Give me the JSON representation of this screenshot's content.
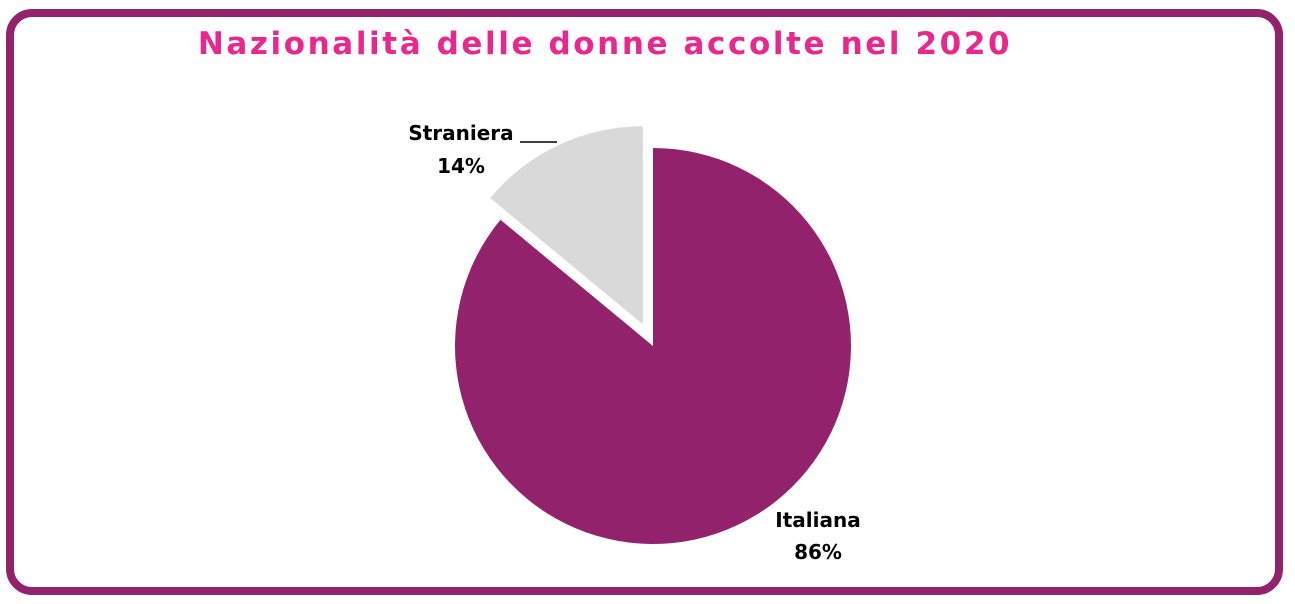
{
  "chart_data": {
    "type": "pie",
    "title": "Nazionalità delle donne accolte nel 2020",
    "slices": [
      {
        "label": "Italiana",
        "value": 86,
        "value_label": "86%",
        "color": "#93226c",
        "exploded": false
      },
      {
        "label": "Straniera",
        "value": 14,
        "value_label": "14%",
        "color": "#d9d9d9",
        "exploded": true
      }
    ],
    "start_angle_deg": 0,
    "direction": "clockwise",
    "legend": "none"
  },
  "colors": {
    "border": "#93226c",
    "title": "#e8278f"
  }
}
